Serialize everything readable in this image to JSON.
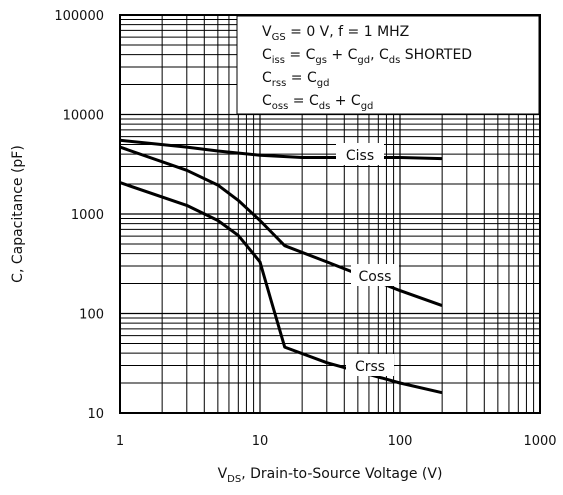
{
  "chart_data": {
    "type": "line",
    "xlabel": [
      "V",
      "DS",
      ", Drain-to-Source Voltage (V)"
    ],
    "ylabel": "C, Capacitance (pF)",
    "annotation": [
      [
        "V",
        "GS",
        " = 0 V,          f = 1 MHZ"
      ],
      [
        "C",
        "iss",
        " = C",
        "gs",
        " + C",
        "gd",
        ",     C",
        "ds",
        "       SHORTED"
      ],
      [
        "C",
        "rss",
        " = C",
        "gd"
      ],
      [
        "C",
        "oss",
        " = C",
        "ds",
        " + C",
        "gd"
      ]
    ],
    "xscale": "log",
    "yscale": "log",
    "xlim": [
      1,
      1000
    ],
    "ylim": [
      10,
      100000
    ],
    "xticks": [
      1,
      10,
      100,
      1000
    ],
    "yticks": [
      10,
      100,
      1000,
      10000,
      100000
    ],
    "grid": true,
    "minor_grid": true,
    "series": [
      {
        "name": "Ciss",
        "color": "#000000",
        "x": [
          1,
          3,
          5,
          10,
          20,
          50,
          100,
          200
        ],
        "values": [
          5500,
          4700,
          4300,
          3900,
          3700,
          3700,
          3700,
          3600
        ]
      },
      {
        "name": "Coss",
        "color": "#000000",
        "x": [
          1,
          3,
          5,
          7,
          10,
          15,
          30,
          100,
          200
        ],
        "values": [
          4700,
          2750,
          1950,
          1370,
          860,
          480,
          330,
          170,
          120
        ]
      },
      {
        "name": "Crss",
        "color": "#000000",
        "x": [
          1,
          3,
          5,
          7,
          10,
          12,
          15,
          30,
          100,
          200
        ],
        "values": [
          2070,
          1220,
          860,
          610,
          330,
          135,
          46,
          32,
          20,
          16
        ]
      }
    ]
  }
}
